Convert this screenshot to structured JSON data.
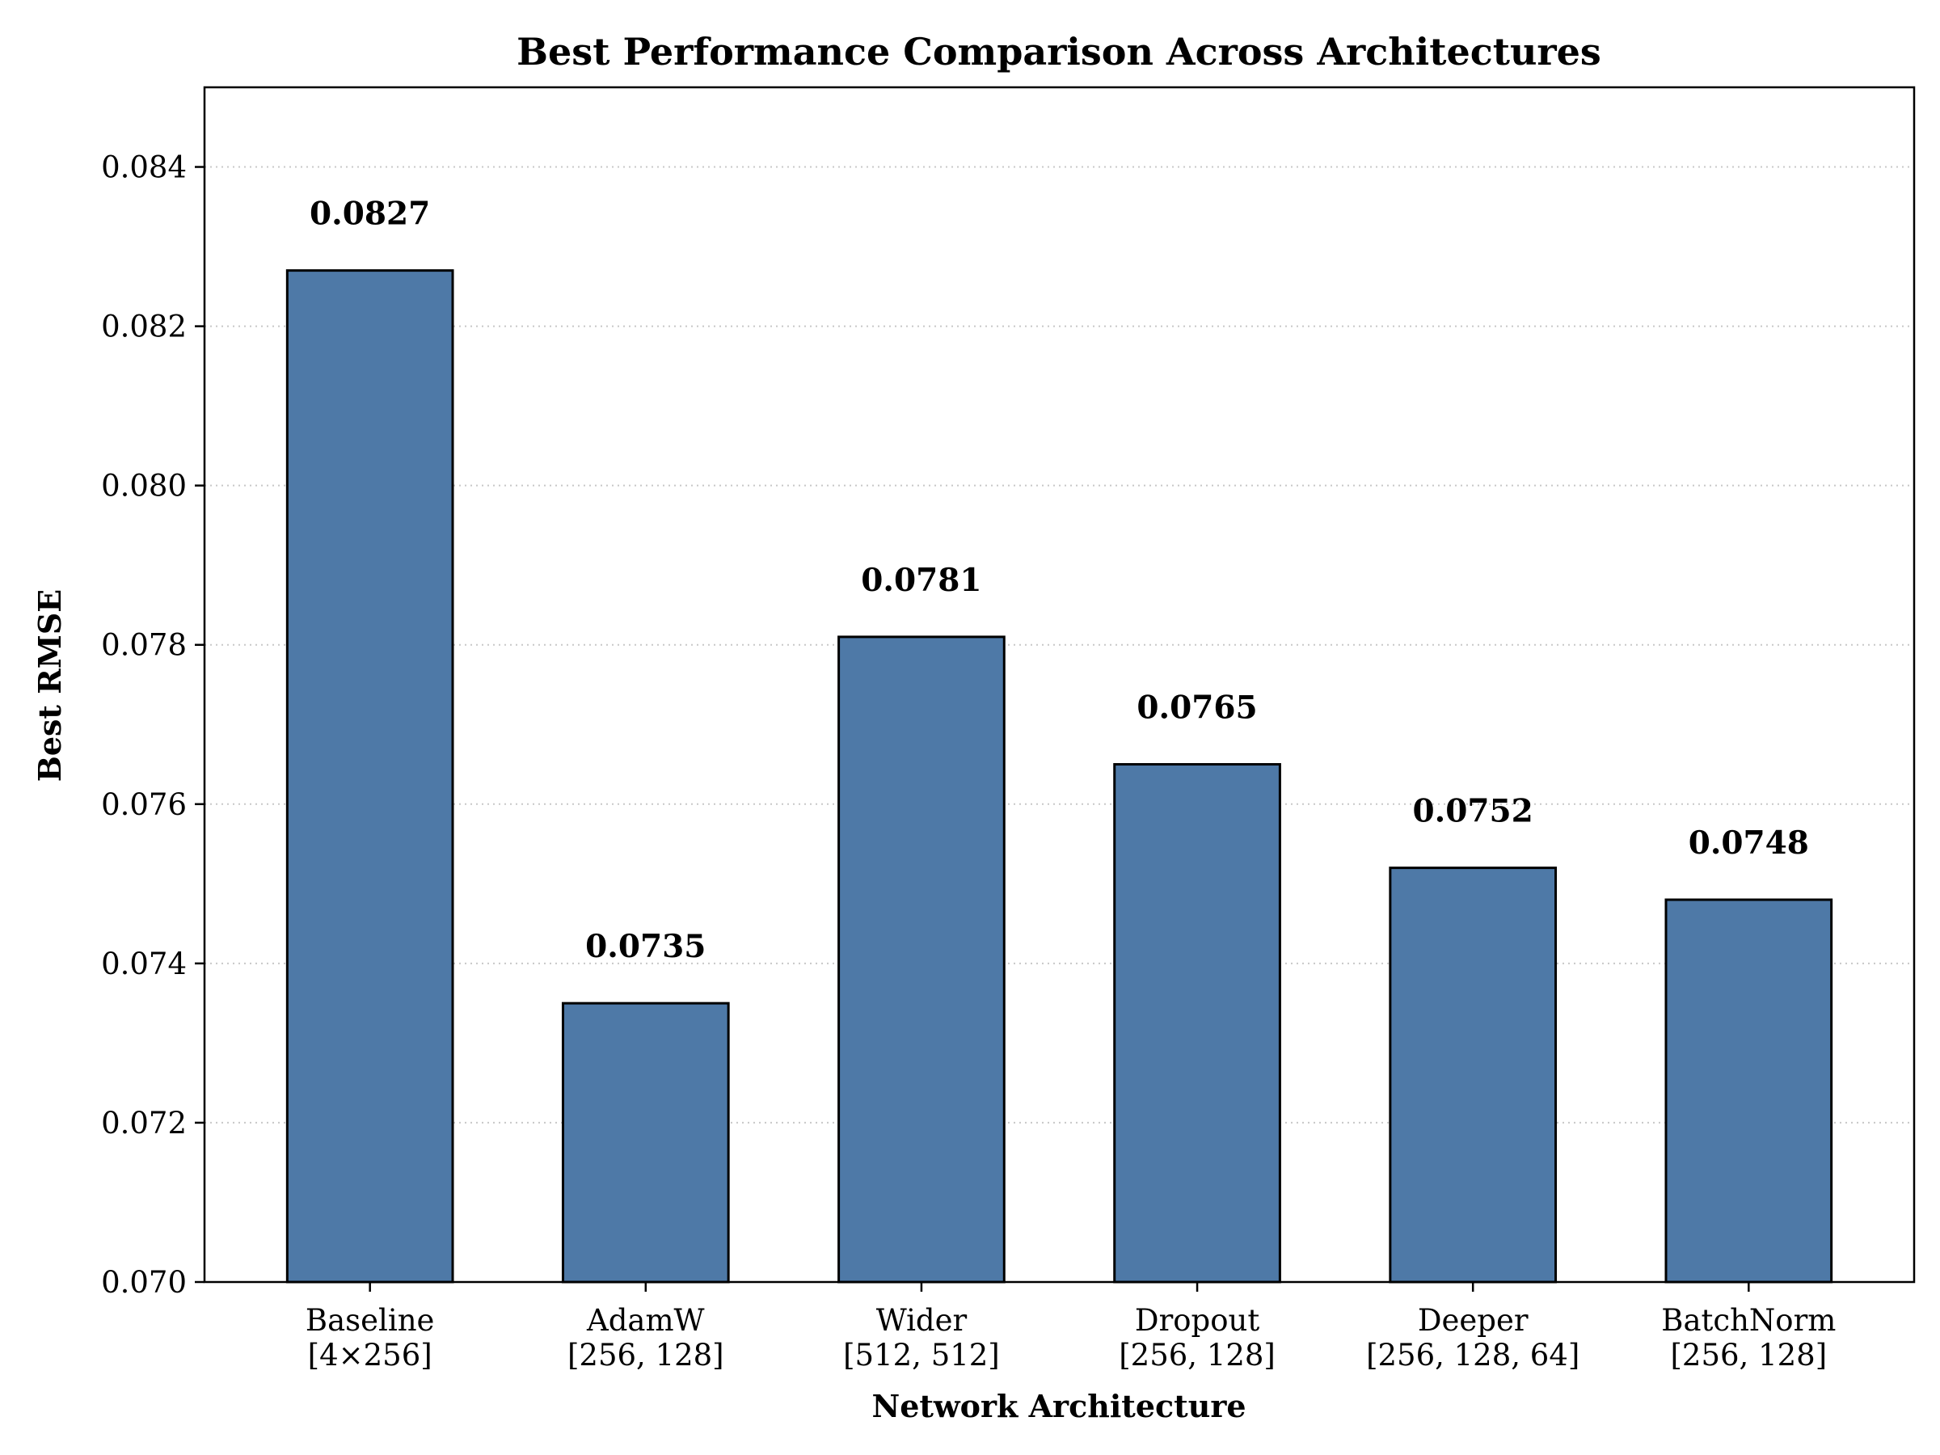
{
  "chart_data": {
    "type": "bar",
    "title": "Best Performance Comparison Across Architectures",
    "xlabel": "Network Architecture",
    "ylabel": "Best RMSE",
    "categories": [
      {
        "name": "Baseline",
        "detail": "[4×256]"
      },
      {
        "name": "AdamW",
        "detail": "[256, 128]"
      },
      {
        "name": "Wider",
        "detail": "[512, 512]"
      },
      {
        "name": "Dropout",
        "detail": "[256, 128]"
      },
      {
        "name": "Deeper",
        "detail": "[256, 128, 64]"
      },
      {
        "name": "BatchNorm",
        "detail": "[256, 128]"
      }
    ],
    "values": [
      0.0827,
      0.0735,
      0.0781,
      0.0765,
      0.0752,
      0.0748
    ],
    "data_labels": [
      "0.0827",
      "0.0735",
      "0.0781",
      "0.0765",
      "0.0752",
      "0.0748"
    ],
    "ylim": [
      0.07,
      0.085
    ],
    "yticks": [
      0.07,
      0.072,
      0.074,
      0.076,
      0.078,
      0.08,
      0.082,
      0.084
    ],
    "ytick_labels": [
      "0.070",
      "0.072",
      "0.074",
      "0.076",
      "0.078",
      "0.080",
      "0.082",
      "0.084"
    ],
    "grid": "y-dotted",
    "bar_color": "#4e79a7",
    "edge_color": "#000000",
    "grid_color": "#c8c8c8"
  }
}
